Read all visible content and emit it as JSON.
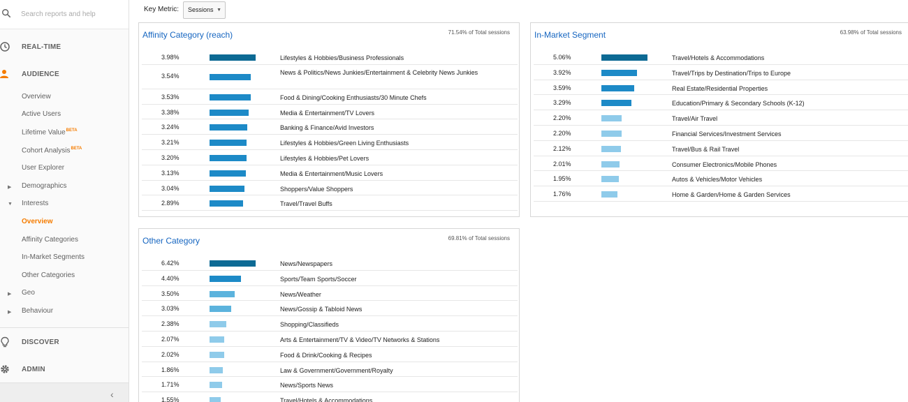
{
  "search": {
    "placeholder": "Search reports and help"
  },
  "nav": {
    "realtime": "REAL-TIME",
    "audience": "AUDIENCE",
    "discover": "DISCOVER",
    "admin": "ADMIN",
    "sub": {
      "overview": "Overview",
      "active_users": "Active Users",
      "lifetime_value": "Lifetime Value",
      "cohort_analysis": "Cohort Analysis",
      "beta": "BETA",
      "user_explorer": "User Explorer",
      "demographics": "Demographics",
      "interests": "Interests",
      "interests_overview": "Overview",
      "affinity_categories": "Affinity Categories",
      "in_market_segments": "In-Market Segments",
      "other_categories": "Other Categories",
      "geo": "Geo",
      "behaviour": "Behaviour"
    }
  },
  "key_metric": {
    "label": "Key Metric:",
    "selected": "Sessions"
  },
  "colors": {
    "dark": "#0d6a94",
    "mid": "#1d8ac7",
    "light": "#5cb3dd",
    "lighter": "#8fcbea",
    "accent": "#f57c00",
    "link": "#1565c0"
  },
  "panels": {
    "affinity": {
      "title": "Affinity Category (reach)",
      "total": "71.54% of Total sessions",
      "rows": [
        {
          "pct": "3.98%",
          "value": 3.98,
          "label": "Lifestyles & Hobbies/Business Professionals"
        },
        {
          "pct": "3.54%",
          "value": 3.54,
          "label": "News & Politics/News Junkies/Entertainment & Celebrity News Junkies"
        },
        {
          "pct": "3.53%",
          "value": 3.53,
          "label": "Food & Dining/Cooking Enthusiasts/30 Minute Chefs"
        },
        {
          "pct": "3.38%",
          "value": 3.38,
          "label": "Media & Entertainment/TV Lovers"
        },
        {
          "pct": "3.24%",
          "value": 3.24,
          "label": "Banking & Finance/Avid Investors"
        },
        {
          "pct": "3.21%",
          "value": 3.21,
          "label": "Lifestyles & Hobbies/Green Living Enthusiasts"
        },
        {
          "pct": "3.20%",
          "value": 3.2,
          "label": "Lifestyles & Hobbies/Pet Lovers"
        },
        {
          "pct": "3.13%",
          "value": 3.13,
          "label": "Media & Entertainment/Music Lovers"
        },
        {
          "pct": "3.04%",
          "value": 3.04,
          "label": "Shoppers/Value Shoppers"
        },
        {
          "pct": "2.89%",
          "value": 2.89,
          "label": "Travel/Travel Buffs"
        }
      ]
    },
    "inmarket": {
      "title": "In-Market Segment",
      "total": "63.98% of Total sessions",
      "rows": [
        {
          "pct": "5.06%",
          "value": 5.06,
          "label": "Travel/Hotels & Accommodations"
        },
        {
          "pct": "3.92%",
          "value": 3.92,
          "label": "Travel/Trips by Destination/Trips to Europe"
        },
        {
          "pct": "3.59%",
          "value": 3.59,
          "label": "Real Estate/Residential Properties"
        },
        {
          "pct": "3.29%",
          "value": 3.29,
          "label": "Education/Primary & Secondary Schools (K-12)"
        },
        {
          "pct": "2.20%",
          "value": 2.2,
          "label": "Travel/Air Travel"
        },
        {
          "pct": "2.20%",
          "value": 2.2,
          "label": "Financial Services/Investment Services"
        },
        {
          "pct": "2.12%",
          "value": 2.12,
          "label": "Travel/Bus & Rail Travel"
        },
        {
          "pct": "2.01%",
          "value": 2.01,
          "label": "Consumer Electronics/Mobile Phones"
        },
        {
          "pct": "1.95%",
          "value": 1.95,
          "label": "Autos & Vehicles/Motor Vehicles"
        },
        {
          "pct": "1.76%",
          "value": 1.76,
          "label": "Home & Garden/Home & Garden Services"
        }
      ]
    },
    "other": {
      "title": "Other Category",
      "total": "69.81% of Total sessions",
      "rows": [
        {
          "pct": "6.42%",
          "value": 6.42,
          "label": "News/Newspapers"
        },
        {
          "pct": "4.40%",
          "value": 4.4,
          "label": "Sports/Team Sports/Soccer"
        },
        {
          "pct": "3.50%",
          "value": 3.5,
          "label": "News/Weather"
        },
        {
          "pct": "3.03%",
          "value": 3.03,
          "label": "News/Gossip & Tabloid News"
        },
        {
          "pct": "2.38%",
          "value": 2.38,
          "label": "Shopping/Classifieds"
        },
        {
          "pct": "2.07%",
          "value": 2.07,
          "label": "Arts & Entertainment/TV & Video/TV Networks & Stations"
        },
        {
          "pct": "2.02%",
          "value": 2.02,
          "label": "Food & Drink/Cooking & Recipes"
        },
        {
          "pct": "1.86%",
          "value": 1.86,
          "label": "Law & Government/Government/Royalty"
        },
        {
          "pct": "1.71%",
          "value": 1.71,
          "label": "News/Sports News"
        },
        {
          "pct": "1.55%",
          "value": 1.55,
          "label": "Travel/Hotels & Accommodations"
        }
      ]
    }
  }
}
